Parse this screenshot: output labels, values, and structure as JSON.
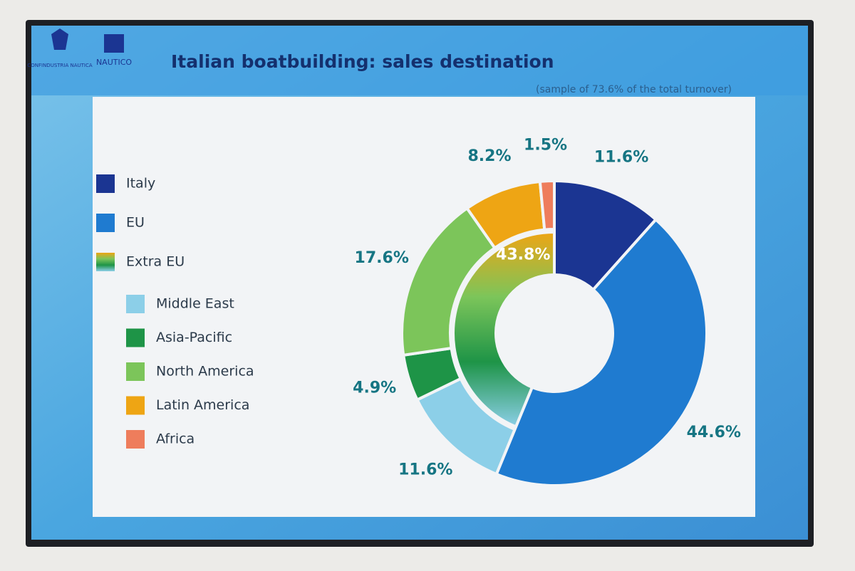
{
  "chart_data": {
    "type": "donut",
    "title": "Italian boatbuilding: sales destination",
    "subtitle": "(sample of 73.6% of the total turnover)",
    "logos": [
      "CONFINDUSTRIA NAUTICA",
      "NAUTICO"
    ],
    "categories": [
      "Italy",
      "EU",
      "Middle East",
      "Asia-Pacific",
      "North America",
      "Latin America",
      "Africa"
    ],
    "values": [
      11.6,
      44.6,
      11.6,
      4.9,
      17.6,
      8.2,
      1.5
    ],
    "value_labels": [
      "11.6%",
      "44.6%",
      "11.6%",
      "4.9%",
      "17.6%",
      "8.2%",
      "1.5%"
    ],
    "colors": [
      "#1b3592",
      "#1f7bd0",
      "#8ccfe8",
      "#1e9447",
      "#7cc55a",
      "#eea514",
      "#ee7d5c"
    ],
    "group": {
      "name": "Extra EU",
      "value": 43.8,
      "value_label": "43.8%",
      "colors": [
        "#8ccfe8",
        "#1e9447",
        "#7cc55a",
        "#eea514"
      ]
    }
  }
}
